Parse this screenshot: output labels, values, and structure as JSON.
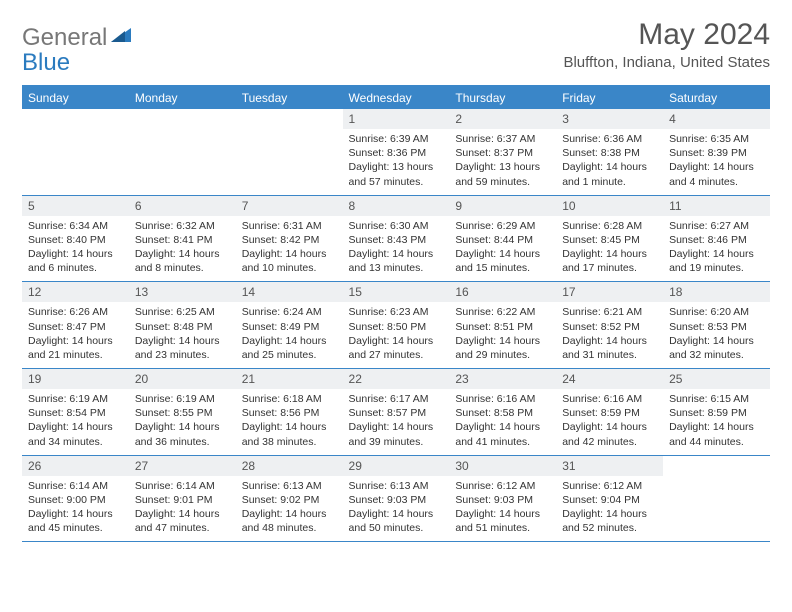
{
  "logo": {
    "general": "General",
    "blue": "Blue"
  },
  "title": "May 2024",
  "location": "Bluffton, Indiana, United States",
  "colors": {
    "header_bg": "#3a86c8",
    "daynum_bg": "#eef0f2",
    "border": "#3a86c8",
    "logo_gray": "#777777",
    "logo_blue": "#2b7bbf"
  },
  "weekdays": [
    "Sunday",
    "Monday",
    "Tuesday",
    "Wednesday",
    "Thursday",
    "Friday",
    "Saturday"
  ],
  "weeks": [
    [
      {
        "n": "",
        "l1": "",
        "l2": "",
        "l3": "",
        "l4": ""
      },
      {
        "n": "",
        "l1": "",
        "l2": "",
        "l3": "",
        "l4": ""
      },
      {
        "n": "",
        "l1": "",
        "l2": "",
        "l3": "",
        "l4": ""
      },
      {
        "n": "1",
        "l1": "Sunrise: 6:39 AM",
        "l2": "Sunset: 8:36 PM",
        "l3": "Daylight: 13 hours",
        "l4": "and 57 minutes."
      },
      {
        "n": "2",
        "l1": "Sunrise: 6:37 AM",
        "l2": "Sunset: 8:37 PM",
        "l3": "Daylight: 13 hours",
        "l4": "and 59 minutes."
      },
      {
        "n": "3",
        "l1": "Sunrise: 6:36 AM",
        "l2": "Sunset: 8:38 PM",
        "l3": "Daylight: 14 hours",
        "l4": "and 1 minute."
      },
      {
        "n": "4",
        "l1": "Sunrise: 6:35 AM",
        "l2": "Sunset: 8:39 PM",
        "l3": "Daylight: 14 hours",
        "l4": "and 4 minutes."
      }
    ],
    [
      {
        "n": "5",
        "l1": "Sunrise: 6:34 AM",
        "l2": "Sunset: 8:40 PM",
        "l3": "Daylight: 14 hours",
        "l4": "and 6 minutes."
      },
      {
        "n": "6",
        "l1": "Sunrise: 6:32 AM",
        "l2": "Sunset: 8:41 PM",
        "l3": "Daylight: 14 hours",
        "l4": "and 8 minutes."
      },
      {
        "n": "7",
        "l1": "Sunrise: 6:31 AM",
        "l2": "Sunset: 8:42 PM",
        "l3": "Daylight: 14 hours",
        "l4": "and 10 minutes."
      },
      {
        "n": "8",
        "l1": "Sunrise: 6:30 AM",
        "l2": "Sunset: 8:43 PM",
        "l3": "Daylight: 14 hours",
        "l4": "and 13 minutes."
      },
      {
        "n": "9",
        "l1": "Sunrise: 6:29 AM",
        "l2": "Sunset: 8:44 PM",
        "l3": "Daylight: 14 hours",
        "l4": "and 15 minutes."
      },
      {
        "n": "10",
        "l1": "Sunrise: 6:28 AM",
        "l2": "Sunset: 8:45 PM",
        "l3": "Daylight: 14 hours",
        "l4": "and 17 minutes."
      },
      {
        "n": "11",
        "l1": "Sunrise: 6:27 AM",
        "l2": "Sunset: 8:46 PM",
        "l3": "Daylight: 14 hours",
        "l4": "and 19 minutes."
      }
    ],
    [
      {
        "n": "12",
        "l1": "Sunrise: 6:26 AM",
        "l2": "Sunset: 8:47 PM",
        "l3": "Daylight: 14 hours",
        "l4": "and 21 minutes."
      },
      {
        "n": "13",
        "l1": "Sunrise: 6:25 AM",
        "l2": "Sunset: 8:48 PM",
        "l3": "Daylight: 14 hours",
        "l4": "and 23 minutes."
      },
      {
        "n": "14",
        "l1": "Sunrise: 6:24 AM",
        "l2": "Sunset: 8:49 PM",
        "l3": "Daylight: 14 hours",
        "l4": "and 25 minutes."
      },
      {
        "n": "15",
        "l1": "Sunrise: 6:23 AM",
        "l2": "Sunset: 8:50 PM",
        "l3": "Daylight: 14 hours",
        "l4": "and 27 minutes."
      },
      {
        "n": "16",
        "l1": "Sunrise: 6:22 AM",
        "l2": "Sunset: 8:51 PM",
        "l3": "Daylight: 14 hours",
        "l4": "and 29 minutes."
      },
      {
        "n": "17",
        "l1": "Sunrise: 6:21 AM",
        "l2": "Sunset: 8:52 PM",
        "l3": "Daylight: 14 hours",
        "l4": "and 31 minutes."
      },
      {
        "n": "18",
        "l1": "Sunrise: 6:20 AM",
        "l2": "Sunset: 8:53 PM",
        "l3": "Daylight: 14 hours",
        "l4": "and 32 minutes."
      }
    ],
    [
      {
        "n": "19",
        "l1": "Sunrise: 6:19 AM",
        "l2": "Sunset: 8:54 PM",
        "l3": "Daylight: 14 hours",
        "l4": "and 34 minutes."
      },
      {
        "n": "20",
        "l1": "Sunrise: 6:19 AM",
        "l2": "Sunset: 8:55 PM",
        "l3": "Daylight: 14 hours",
        "l4": "and 36 minutes."
      },
      {
        "n": "21",
        "l1": "Sunrise: 6:18 AM",
        "l2": "Sunset: 8:56 PM",
        "l3": "Daylight: 14 hours",
        "l4": "and 38 minutes."
      },
      {
        "n": "22",
        "l1": "Sunrise: 6:17 AM",
        "l2": "Sunset: 8:57 PM",
        "l3": "Daylight: 14 hours",
        "l4": "and 39 minutes."
      },
      {
        "n": "23",
        "l1": "Sunrise: 6:16 AM",
        "l2": "Sunset: 8:58 PM",
        "l3": "Daylight: 14 hours",
        "l4": "and 41 minutes."
      },
      {
        "n": "24",
        "l1": "Sunrise: 6:16 AM",
        "l2": "Sunset: 8:59 PM",
        "l3": "Daylight: 14 hours",
        "l4": "and 42 minutes."
      },
      {
        "n": "25",
        "l1": "Sunrise: 6:15 AM",
        "l2": "Sunset: 8:59 PM",
        "l3": "Daylight: 14 hours",
        "l4": "and 44 minutes."
      }
    ],
    [
      {
        "n": "26",
        "l1": "Sunrise: 6:14 AM",
        "l2": "Sunset: 9:00 PM",
        "l3": "Daylight: 14 hours",
        "l4": "and 45 minutes."
      },
      {
        "n": "27",
        "l1": "Sunrise: 6:14 AM",
        "l2": "Sunset: 9:01 PM",
        "l3": "Daylight: 14 hours",
        "l4": "and 47 minutes."
      },
      {
        "n": "28",
        "l1": "Sunrise: 6:13 AM",
        "l2": "Sunset: 9:02 PM",
        "l3": "Daylight: 14 hours",
        "l4": "and 48 minutes."
      },
      {
        "n": "29",
        "l1": "Sunrise: 6:13 AM",
        "l2": "Sunset: 9:03 PM",
        "l3": "Daylight: 14 hours",
        "l4": "and 50 minutes."
      },
      {
        "n": "30",
        "l1": "Sunrise: 6:12 AM",
        "l2": "Sunset: 9:03 PM",
        "l3": "Daylight: 14 hours",
        "l4": "and 51 minutes."
      },
      {
        "n": "31",
        "l1": "Sunrise: 6:12 AM",
        "l2": "Sunset: 9:04 PM",
        "l3": "Daylight: 14 hours",
        "l4": "and 52 minutes."
      },
      {
        "n": "",
        "l1": "",
        "l2": "",
        "l3": "",
        "l4": ""
      }
    ]
  ]
}
